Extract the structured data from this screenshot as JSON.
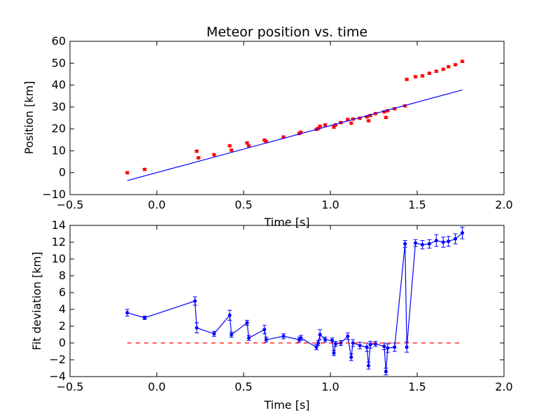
{
  "chart_data": [
    {
      "type": "scatter",
      "title": "Meteor position vs. time",
      "xlabel": "Time [s]",
      "ylabel": "Position [km]",
      "xlim": [
        -0.5,
        2.0
      ],
      "ylim": [
        -10,
        60
      ],
      "xticks": [
        "−0.5",
        "0.0",
        "0.5",
        "1.0",
        "1.5",
        "2.0"
      ],
      "yticks": [
        "−10",
        "0",
        "10",
        "20",
        "30",
        "40",
        "50",
        "60"
      ],
      "grid": false,
      "series": [
        {
          "kind": "points-with-errorbars",
          "color": "#ff0000",
          "x": [
            -0.17,
            -0.07,
            0.23,
            0.24,
            0.33,
            0.42,
            0.43,
            0.52,
            0.53,
            0.62,
            0.63,
            0.73,
            0.82,
            0.83,
            0.92,
            0.93,
            0.94,
            0.97,
            1.02,
            1.03,
            1.06,
            1.1,
            1.12,
            1.13,
            1.17,
            1.21,
            1.22,
            1.23,
            1.26,
            1.31,
            1.32,
            1.33,
            1.37,
            1.43,
            1.44,
            1.49,
            1.53,
            1.57,
            1.61,
            1.65,
            1.68,
            1.72,
            1.76
          ],
          "y": [
            0.0,
            1.5,
            9.8,
            6.8,
            8.2,
            12.3,
            10.3,
            13.6,
            12.2,
            14.9,
            14.2,
            16.3,
            17.9,
            18.5,
            19.8,
            20.2,
            21.2,
            21.8,
            20.8,
            21.8,
            22.9,
            24.3,
            22.6,
            24.5,
            24.9,
            25.5,
            23.7,
            26.1,
            27.0,
            27.8,
            25.2,
            28.3,
            29.2,
            30.5,
            42.6,
            43.8,
            44.2,
            45.4,
            46.3,
            47.2,
            48.4,
            49.3,
            50.8
          ],
          "yerr": 0.5
        },
        {
          "kind": "fit-line",
          "color": "#0000ff",
          "x": [
            -0.17,
            1.76
          ],
          "y": [
            -3.6,
            37.8
          ]
        }
      ]
    },
    {
      "type": "line",
      "title": "",
      "xlabel": "Time [s]",
      "ylabel": "Fit deviation [km]",
      "xlim": [
        -0.5,
        2.0
      ],
      "ylim": [
        -4,
        14
      ],
      "xticks": [
        "−0.5",
        "0.0",
        "0.5",
        "1.0",
        "1.5",
        "2.0"
      ],
      "yticks": [
        "−4",
        "−2",
        "0",
        "2",
        "4",
        "6",
        "8",
        "10",
        "12",
        "14"
      ],
      "grid": false,
      "series": [
        {
          "kind": "line-with-errorbars",
          "color": "#0000ff",
          "x": [
            -0.17,
            -0.07,
            0.22,
            0.23,
            0.33,
            0.42,
            0.43,
            0.52,
            0.53,
            0.62,
            0.63,
            0.73,
            0.82,
            0.83,
            0.92,
            0.93,
            0.94,
            0.97,
            1.01,
            1.02,
            1.03,
            1.06,
            1.1,
            1.12,
            1.13,
            1.17,
            1.21,
            1.22,
            1.23,
            1.26,
            1.31,
            1.32,
            1.33,
            1.37,
            1.43,
            1.44,
            1.49,
            1.53,
            1.57,
            1.61,
            1.65,
            1.68,
            1.72,
            1.76
          ],
          "y": [
            3.6,
            3.0,
            5.0,
            1.8,
            1.1,
            3.3,
            1.0,
            2.4,
            0.6,
            1.6,
            0.4,
            0.8,
            0.4,
            0.6,
            -0.5,
            0.0,
            1.0,
            0.4,
            0.3,
            -1.2,
            -0.1,
            0.0,
            0.8,
            -1.7,
            0.0,
            -0.3,
            -0.5,
            -2.7,
            -0.2,
            -0.1,
            -0.4,
            -3.4,
            -0.6,
            -0.5,
            11.8,
            -0.5,
            11.9,
            11.7,
            11.8,
            12.2,
            12.0,
            12.1,
            12.4,
            13.1
          ],
          "yerr": [
            0.4,
            0.2,
            0.5,
            0.6,
            0.3,
            0.6,
            0.3,
            0.3,
            0.3,
            0.5,
            0.3,
            0.3,
            0.3,
            0.3,
            0.3,
            0.3,
            0.6,
            0.3,
            0.3,
            0.3,
            0.3,
            0.3,
            0.4,
            0.4,
            0.4,
            0.4,
            0.5,
            0.4,
            0.4,
            0.3,
            0.4,
            0.4,
            0.5,
            0.5,
            0.4,
            0.6,
            0.4,
            0.5,
            0.5,
            0.7,
            0.6,
            0.6,
            0.6,
            0.7
          ]
        },
        {
          "kind": "zero-line",
          "color": "#ff0000",
          "x": [
            -0.17,
            1.76
          ],
          "y": [
            0,
            0
          ]
        }
      ]
    }
  ]
}
